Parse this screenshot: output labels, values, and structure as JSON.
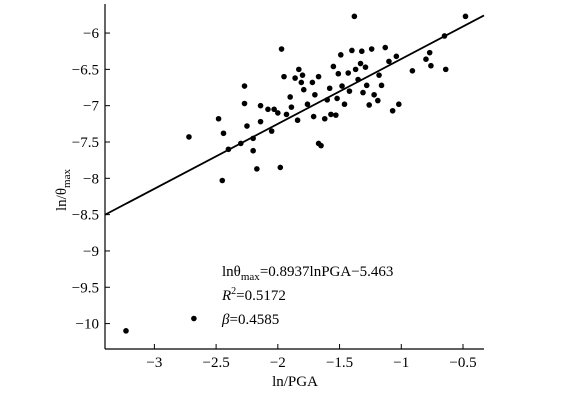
{
  "chart_data": {
    "type": "scatter",
    "xlabel": "ln/PGA",
    "ylabel_main": "ln/θ",
    "ylabel_sub": "max",
    "xlim": [
      -3.4,
      -0.33
    ],
    "ylim": [
      -10.35,
      -5.6
    ],
    "x_ticks": [
      -3,
      -2.5,
      -2,
      -1.5,
      -1,
      -0.5
    ],
    "x_tick_labels": [
      "−3",
      "−2.5",
      "−2",
      "−1.5",
      "−1",
      "−0.5"
    ],
    "y_ticks": [
      -6,
      -6.5,
      -7,
      -7.5,
      -8,
      -8.5,
      -9,
      -9.5,
      -10
    ],
    "y_tick_labels": [
      "−6",
      "−6.5",
      "−7",
      "−7.5",
      "−8",
      "−8.5",
      "−9",
      "−9.5",
      "−10"
    ],
    "fit_line": {
      "slope": 0.8937,
      "intercept": -5.463
    },
    "annotations": {
      "equation": {
        "main": "lnθ",
        "sub": "max",
        "rest": "=0.8937lnPGA−5.463"
      },
      "r2": {
        "main": "R",
        "sup": "2",
        "rest": "=0.5172"
      },
      "beta": {
        "main": "β",
        "rest": "=0.4585"
      }
    },
    "points": [
      [
        -3.23,
        -10.1
      ],
      [
        -2.68,
        -9.93
      ],
      [
        -2.72,
        -7.43
      ],
      [
        -2.48,
        -7.18
      ],
      [
        -2.44,
        -7.38
      ],
      [
        -2.45,
        -8.03
      ],
      [
        -2.4,
        -7.6
      ],
      [
        -2.3,
        -7.52
      ],
      [
        -2.27,
        -6.73
      ],
      [
        -2.27,
        -6.97
      ],
      [
        -2.25,
        -7.28
      ],
      [
        -2.2,
        -7.45
      ],
      [
        -2.2,
        -7.62
      ],
      [
        -2.17,
        -7.87
      ],
      [
        -2.14,
        -7.22
      ],
      [
        -2.14,
        -7.0
      ],
      [
        -2.08,
        -7.05
      ],
      [
        -2.05,
        -7.35
      ],
      [
        -2.03,
        -7.05
      ],
      [
        -2.0,
        -7.1
      ],
      [
        -1.98,
        -7.85
      ],
      [
        -1.97,
        -6.22
      ],
      [
        -1.95,
        -6.6
      ],
      [
        -1.93,
        -7.12
      ],
      [
        -1.9,
        -6.88
      ],
      [
        -1.89,
        -7.02
      ],
      [
        -1.86,
        -6.62
      ],
      [
        -1.84,
        -7.2
      ],
      [
        -1.83,
        -6.5
      ],
      [
        -1.81,
        -6.68
      ],
      [
        -1.8,
        -6.58
      ],
      [
        -1.79,
        -6.78
      ],
      [
        -1.76,
        -6.98
      ],
      [
        -1.72,
        -6.68
      ],
      [
        -1.71,
        -7.15
      ],
      [
        -1.7,
        -6.85
      ],
      [
        -1.67,
        -6.6
      ],
      [
        -1.67,
        -7.52
      ],
      [
        -1.65,
        -7.55
      ],
      [
        -1.62,
        -7.18
      ],
      [
        -1.6,
        -6.92
      ],
      [
        -1.58,
        -6.76
      ],
      [
        -1.57,
        -7.12
      ],
      [
        -1.55,
        -6.46
      ],
      [
        -1.53,
        -7.13
      ],
      [
        -1.52,
        -6.9
      ],
      [
        -1.51,
        -6.56
      ],
      [
        -1.49,
        -6.3
      ],
      [
        -1.48,
        -6.73
      ],
      [
        -1.46,
        -6.98
      ],
      [
        -1.43,
        -6.55
      ],
      [
        -1.42,
        -6.8
      ],
      [
        -1.4,
        -6.24
      ],
      [
        -1.38,
        -5.77
      ],
      [
        -1.37,
        -6.5
      ],
      [
        -1.35,
        -6.64
      ],
      [
        -1.33,
        -6.42
      ],
      [
        -1.32,
        -6.25
      ],
      [
        -1.31,
        -6.82
      ],
      [
        -1.29,
        -6.47
      ],
      [
        -1.28,
        -6.72
      ],
      [
        -1.26,
        -6.99
      ],
      [
        -1.24,
        -6.22
      ],
      [
        -1.22,
        -6.85
      ],
      [
        -1.19,
        -6.93
      ],
      [
        -1.18,
        -6.58
      ],
      [
        -1.16,
        -6.72
      ],
      [
        -1.13,
        -6.2
      ],
      [
        -1.1,
        -6.39
      ],
      [
        -1.07,
        -7.07
      ],
      [
        -1.04,
        -6.32
      ],
      [
        -1.02,
        -6.98
      ],
      [
        -0.91,
        -6.52
      ],
      [
        -0.8,
        -6.36
      ],
      [
        -0.77,
        -6.27
      ],
      [
        -0.76,
        -6.45
      ],
      [
        -0.65,
        -6.04
      ],
      [
        -0.64,
        -6.5
      ],
      [
        -0.48,
        -5.77
      ]
    ]
  }
}
